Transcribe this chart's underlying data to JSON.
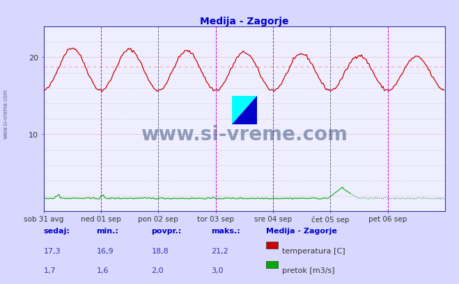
{
  "title": "Medija - Zagorje",
  "title_color": "#0000cc",
  "bg_color": "#d8d8ff",
  "plot_bg_color": "#eeeeff",
  "figsize": [
    6.59,
    4.1
  ],
  "dpi": 100,
  "xlim": [
    0,
    336
  ],
  "ylim": [
    0,
    24
  ],
  "yticks": [
    10,
    20
  ],
  "avg_temp_line": 18.8,
  "temp_color": "#cc0000",
  "flow_color": "#00aa00",
  "flow_dotted_color": "#008800",
  "vline_magenta_color": "#cc00cc",
  "vline_dark_color": "#666688",
  "hline_color": "#ffaaaa",
  "xticklabels": [
    "sob 31 avg",
    "ned 01 sep",
    "pon 02 sep",
    "tor 03 sep",
    "sre 04 sep",
    "čet 05 sep",
    "pet 06 sep"
  ],
  "xtick_positions": [
    0,
    48,
    96,
    144,
    192,
    240,
    288
  ],
  "footer_labels": [
    "sedaj:",
    "min.:",
    "povpr.:",
    "maks.:"
  ],
  "footer_values_temp": [
    "17,3",
    "16,9",
    "18,8",
    "21,2"
  ],
  "footer_values_flow": [
    "1,7",
    "1,6",
    "2,0",
    "3,0"
  ],
  "legend_title": "Medija - Zagorje",
  "legend_items": [
    "temperatura [C]",
    "pretok [m3/s]"
  ],
  "watermark": "www.si-vreme.com",
  "watermark_color": "#1a3a6b",
  "watermark_alpha": 0.45,
  "axis_color": "#3333aa",
  "spine_color": "#3333aa",
  "tick_label_color": "#333333"
}
